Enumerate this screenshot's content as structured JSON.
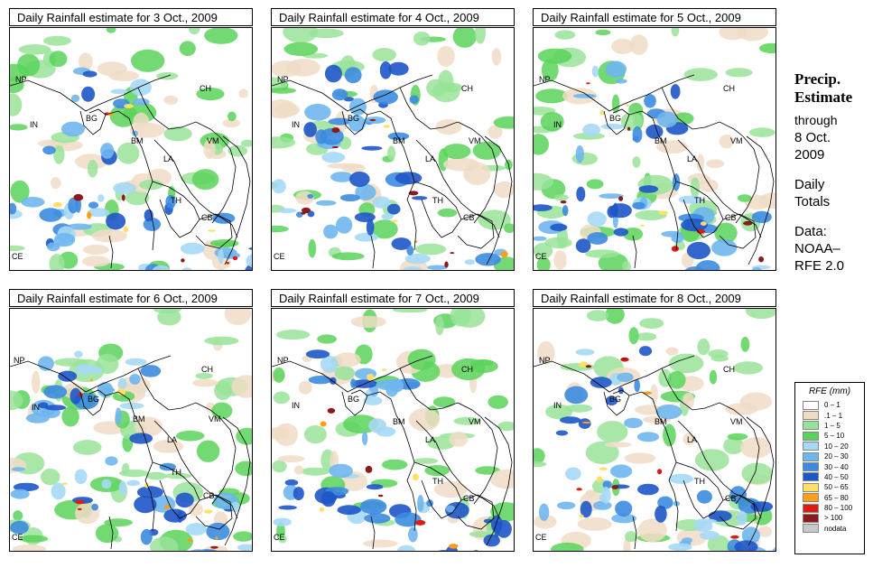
{
  "panels": [
    {
      "title": "Daily Rainfall estimate for  3 Oct., 2009"
    },
    {
      "title": "Daily Rainfall estimate for  4 Oct., 2009"
    },
    {
      "title": "Daily Rainfall estimate for  5 Oct., 2009"
    },
    {
      "title": "Daily Rainfall estimate for  6 Oct., 2009"
    },
    {
      "title": "Daily Rainfall estimate for  7 Oct., 2009"
    },
    {
      "title": "Daily Rainfall estimate for  8 Oct., 2009"
    }
  ],
  "region_labels": {
    "np": "NP",
    "ch": "CH",
    "in": "IN",
    "bg": "BG",
    "bm": "BM",
    "vm": "VM",
    "la": "LA",
    "th": "TH",
    "cb": "CB",
    "ce": "CE"
  },
  "side": {
    "heading_line1": "Precip.",
    "heading_line2": "Estimate",
    "through": "through",
    "date_line1": "8 Oct.",
    "date_line2": "2009",
    "daily": "Daily",
    "totals": "Totals",
    "data_label": "Data:",
    "source_line1": "NOAA–",
    "source_line2": "RFE 2.0"
  },
  "legend": {
    "title": "RFE (mm)",
    "items": [
      {
        "label": "0 – 1",
        "color": "#ffffff"
      },
      {
        "label": ".1 – 1",
        "color": "#f0dcc6"
      },
      {
        "label": "1 – 5",
        "color": "#99e399"
      },
      {
        "label": "5 – 10",
        "color": "#5ad35a"
      },
      {
        "label": "10 – 20",
        "color": "#a6d8f5"
      },
      {
        "label": "20 – 30",
        "color": "#6fb6ee"
      },
      {
        "label": "30 – 40",
        "color": "#3c8be0"
      },
      {
        "label": "40 – 50",
        "color": "#1e56c8"
      },
      {
        "label": "50 – 65",
        "color": "#ffe066"
      },
      {
        "label": "65 – 80",
        "color": "#ff9e1a"
      },
      {
        "label": "80 – 100",
        "color": "#e01a10"
      },
      {
        "label": "> 100",
        "color": "#8b1a1a"
      },
      {
        "label": "nodata",
        "color": "#c8c8c8"
      }
    ]
  }
}
